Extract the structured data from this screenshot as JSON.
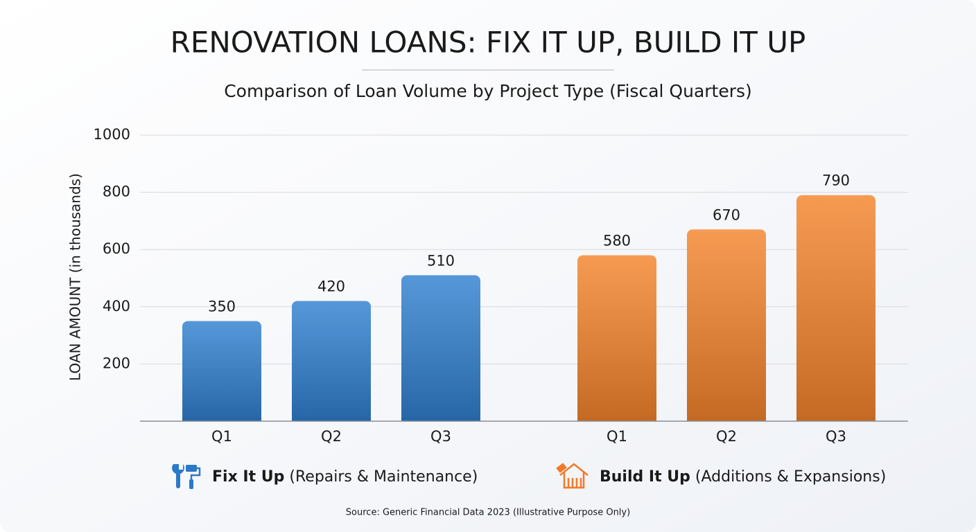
{
  "chart_data": {
    "type": "bar",
    "title": "RENOVATION LOANS: FIX IT UP, BUILD IT UP",
    "subtitle": "Comparison of Loan Volume by Project Type (Fiscal Quarters)",
    "y_label": "LOAN AMOUNT (in thousands)",
    "categories": [
      "Q1",
      "Q2",
      "Q3"
    ],
    "series": [
      {
        "name": "Fix It Up",
        "legend_detail": "(Repairs & Maintenance)",
        "color": "#3080d0",
        "values": [
          350,
          420,
          510
        ]
      },
      {
        "name": "Build It Up",
        "legend_detail": "(Additions & Expansions)",
        "color": "#f4842c",
        "values": [
          580,
          670,
          790
        ]
      }
    ],
    "ylim": [
      0,
      1000
    ],
    "yticks": [
      200,
      400,
      600,
      800,
      1000
    ],
    "grid": true,
    "source": "Source: Generic Financial Data 2023 (Illustrative Purpose Only)"
  }
}
